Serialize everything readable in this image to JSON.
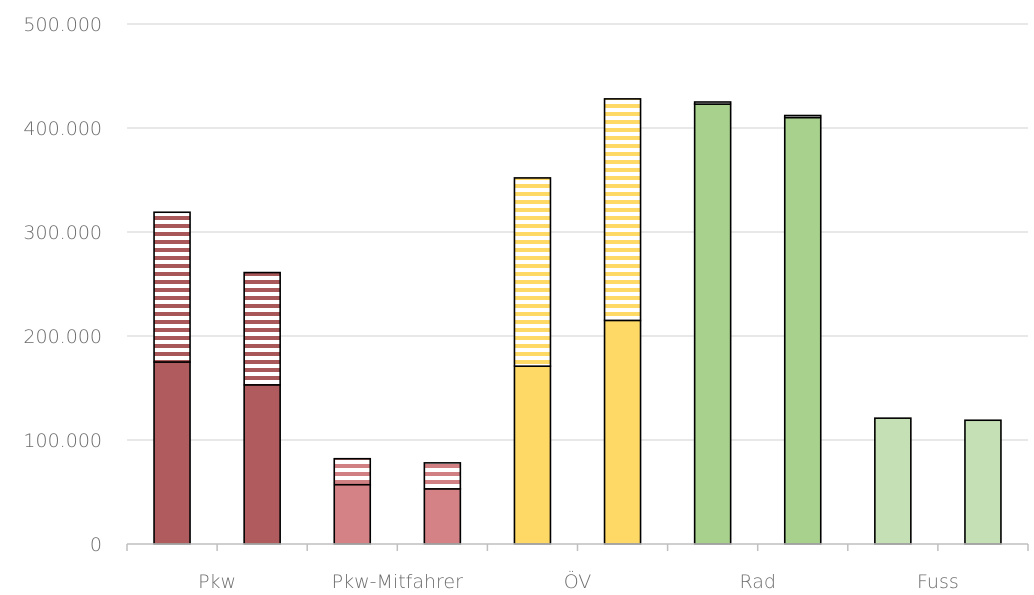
{
  "chart_data": {
    "type": "bar",
    "stacked": true,
    "categories": [
      "Pkw",
      "Pkw-Mitfahrer",
      "ÖV",
      "Rad",
      "Fuss"
    ],
    "bars_per_category": 2,
    "yticks": [
      "0",
      "100.000",
      "200.000",
      "300.000",
      "400.000",
      "500.000"
    ],
    "ylim": [
      0,
      500000
    ],
    "grid": true,
    "legend": "none",
    "series": [
      {
        "role": "solid-segment",
        "values": [
          [
            175000,
            153000
          ],
          [
            57000,
            53000
          ],
          [
            171000,
            215000
          ],
          [
            423000,
            410000
          ],
          [
            121000,
            119000
          ]
        ]
      },
      {
        "role": "striped-segment",
        "values": [
          [
            144000,
            108000
          ],
          [
            25000,
            25000
          ],
          [
            181000,
            213000
          ],
          [
            2000,
            2000
          ],
          [
            0,
            0
          ]
        ]
      }
    ],
    "colors": {
      "Pkw": {
        "fill": "#b05c5e",
        "stripe": "#a9585a"
      },
      "Pkw-Mitfahrer": {
        "fill": "#d48285",
        "stripe": "#d07f82"
      },
      "ÖV": {
        "fill": "#ffd966",
        "stripe": "#ffd966"
      },
      "Rad": {
        "fill": "#a9d18e",
        "stripe": "#a9d18e"
      },
      "Fuss": {
        "fill": "#c5e0b4",
        "stripe": "#c5e0b4"
      }
    },
    "axis_color": "#bfbfbf",
    "grid_color": "#d9d9d9"
  }
}
